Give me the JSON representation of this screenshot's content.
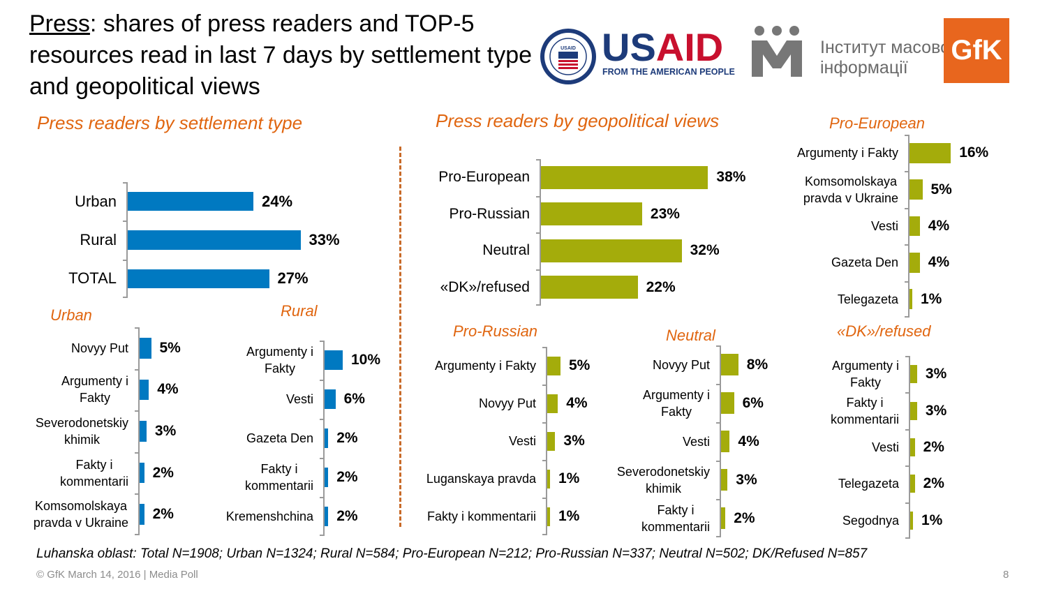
{
  "title": {
    "underlined": "Press",
    "rest": ": shares of press readers and TOP-5 resources read in last 7 days by settlement type and geopolitical views"
  },
  "logos": {
    "usaid_word_1": "US",
    "usaid_word_2": "AID",
    "usaid_tagline": "FROM THE AMERICAN PEOPLE",
    "usaid_seal_top": "UNITED STATES AGENCY",
    "usaid_seal_bottom": "INTERNATIONAL DEVELOPMENT",
    "usaid_seal_inner": "USAID",
    "imi_line1": "Інститут масової",
    "imi_line2": "інформації",
    "gfk": "GfK"
  },
  "colors": {
    "blue": "#0079C1",
    "olive": "#A4AC0B",
    "orange_heading": "#E0650F",
    "usaid_blue": "#1D3B7A",
    "usaid_red": "#C8102E",
    "gfk_orange": "#E8661E"
  },
  "headings": {
    "settlement": "Press readers by settlement type",
    "geopolitical": "Press readers by geopolitical views"
  },
  "chart_data": [
    {
      "id": "settlement",
      "type": "bar",
      "orientation": "horizontal",
      "title": "",
      "categories": [
        "Urban",
        "Rural",
        "TOTAL"
      ],
      "values": [
        24,
        33,
        27
      ],
      "value_labels": [
        "24%",
        "33%",
        "27%"
      ],
      "unit": "%",
      "xlim": [
        0,
        40
      ],
      "color": "blue"
    },
    {
      "id": "urban",
      "type": "bar",
      "orientation": "horizontal",
      "title": "Urban",
      "categories": [
        "Novyy Put",
        "Argumenty i Fakty",
        "Severodonetskiy khimik",
        "Fakty i kommentarii",
        "Komsomolskaya pravda v Ukraine"
      ],
      "values": [
        5,
        4,
        3,
        2,
        2
      ],
      "value_labels": [
        "5%",
        "4%",
        "3%",
        "2%",
        "2%"
      ],
      "unit": "%",
      "xlim": [
        0,
        40
      ],
      "color": "blue"
    },
    {
      "id": "rural",
      "type": "bar",
      "orientation": "horizontal",
      "title": "Rural",
      "categories": [
        "Argumenty i Fakty",
        "Vesti",
        "Gazeta Den",
        "Fakty i kommentarii",
        "Kremenshchina"
      ],
      "values": [
        10,
        6,
        2,
        2,
        2
      ],
      "value_labels": [
        "10%",
        "6%",
        "2%",
        "2%",
        "2%"
      ],
      "unit": "%",
      "xlim": [
        0,
        40
      ],
      "color": "blue"
    },
    {
      "id": "geopolitical",
      "type": "bar",
      "orientation": "horizontal",
      "title": "",
      "categories": [
        "Pro-European",
        "Pro-Russian",
        "Neutral",
        "«DK»/refused"
      ],
      "values": [
        38,
        23,
        32,
        22
      ],
      "value_labels": [
        "38%",
        "23%",
        "32%",
        "22%"
      ],
      "unit": "%",
      "xlim": [
        0,
        40
      ],
      "color": "olive"
    },
    {
      "id": "pro_european",
      "type": "bar",
      "orientation": "horizontal",
      "title": "Pro-European",
      "categories": [
        "Argumenty i Fakty",
        "Komsomolskaya pravda v Ukraine",
        "Vesti",
        "Gazeta Den",
        "Telegazeta"
      ],
      "values": [
        16,
        5,
        4,
        4,
        1
      ],
      "value_labels": [
        "16%",
        "5%",
        "4%",
        "4%",
        "1%"
      ],
      "unit": "%",
      "xlim": [
        0,
        40
      ],
      "color": "olive"
    },
    {
      "id": "pro_russian",
      "type": "bar",
      "orientation": "horizontal",
      "title": "Pro-Russian",
      "categories": [
        "Argumenty i Fakty",
        "Novyy Put",
        "Vesti",
        "Luganskaya pravda",
        "Fakty i kommentarii"
      ],
      "values": [
        5,
        4,
        3,
        1,
        1
      ],
      "value_labels": [
        "5%",
        "4%",
        "3%",
        "1%",
        "1%"
      ],
      "unit": "%",
      "xlim": [
        0,
        40
      ],
      "color": "olive"
    },
    {
      "id": "neutral",
      "type": "bar",
      "orientation": "horizontal",
      "title": "Neutral",
      "categories": [
        "Novyy Put",
        "Argumenty i Fakty",
        "Vesti",
        "Severodonetskiy khimik",
        "Fakty i kommentarii"
      ],
      "values": [
        8,
        6,
        4,
        3,
        2
      ],
      "value_labels": [
        "8%",
        "6%",
        "4%",
        "3%",
        "2%"
      ],
      "unit": "%",
      "xlim": [
        0,
        40
      ],
      "color": "olive"
    },
    {
      "id": "dk_refused",
      "type": "bar",
      "orientation": "horizontal",
      "title": "«DK»/refused",
      "categories": [
        "Argumenty i Fakty",
        "Fakty i kommentarii",
        "Vesti",
        "Telegazeta",
        "Segodnya"
      ],
      "values": [
        3,
        3,
        2,
        2,
        1
      ],
      "value_labels": [
        "3%",
        "3%",
        "2%",
        "2%",
        "1%"
      ],
      "unit": "%",
      "xlim": [
        0,
        40
      ],
      "color": "olive"
    }
  ],
  "footnote": "Luhanska oblast: Total N=1908; Urban N=1324; Rural N=584; Pro-European N=212; Pro-Russian N=337; Neutral N=502; DK/Refused N=857",
  "copyright": "© GfK March 14, 2016 | Media Poll",
  "page_number": "8"
}
